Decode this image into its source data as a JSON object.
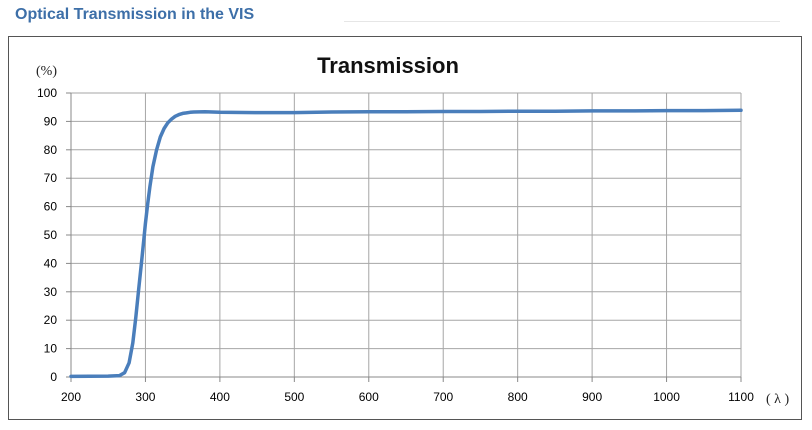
{
  "header": {
    "title": "Optical Transmission in the VIS"
  },
  "chart_data": {
    "type": "line",
    "title": "Transmission",
    "ylabel": "(%)",
    "xlabel": "( λ )",
    "xlim": [
      200,
      1100
    ],
    "ylim": [
      0,
      100
    ],
    "grid": true,
    "xticks": [
      200,
      300,
      400,
      500,
      600,
      700,
      800,
      900,
      1000,
      1100
    ],
    "yticks": [
      0,
      10,
      20,
      30,
      40,
      50,
      60,
      70,
      80,
      90,
      100
    ],
    "series_color": "#4a7ebb",
    "series": [
      {
        "x": [
          200,
          250,
          265,
          272,
          278,
          283,
          287,
          291,
          295,
          298,
          300,
          303,
          306,
          310,
          315,
          320,
          325,
          330,
          335,
          340,
          345,
          350,
          355,
          360,
          365,
          380,
          400,
          450,
          500,
          550,
          600,
          650,
          700,
          750,
          800,
          850,
          900,
          950,
          1000,
          1050,
          1100
        ],
        "y": [
          0.2,
          0.3,
          0.5,
          1.5,
          5,
          12,
          21,
          31,
          41,
          49,
          54,
          61,
          67,
          74,
          80,
          84.5,
          87.5,
          89.5,
          90.8,
          91.8,
          92.4,
          92.8,
          93.0,
          93.2,
          93.3,
          93.4,
          93.2,
          93.1,
          93.1,
          93.3,
          93.4,
          93.4,
          93.5,
          93.5,
          93.6,
          93.6,
          93.7,
          93.7,
          93.8,
          93.8,
          93.9
        ]
      }
    ]
  }
}
